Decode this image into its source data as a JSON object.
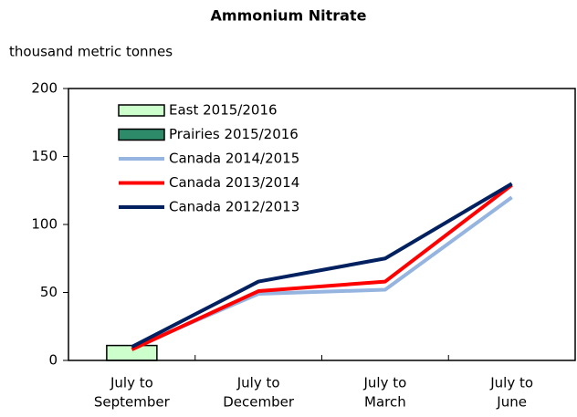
{
  "chart_data": {
    "type": "bar",
    "title": "Ammonium Nitrate",
    "y_label": "thousand metric tonnes",
    "categories": [
      [
        "July to",
        "September"
      ],
      [
        "July to",
        "December"
      ],
      [
        "July to",
        "March"
      ],
      [
        "July to",
        "June"
      ]
    ],
    "series": [
      {
        "name": "East 2015/2016",
        "type": "bar",
        "color": "#ccffcc",
        "values": [
          11,
          null,
          null,
          null
        ]
      },
      {
        "name": "Prairies 2015/2016",
        "type": "bar",
        "color": "#2e8b6a",
        "values": [
          null,
          null,
          null,
          null
        ]
      },
      {
        "name": "Canada 2014/2015",
        "type": "line",
        "color": "#95b4df",
        "values": [
          9,
          49,
          52,
          120
        ]
      },
      {
        "name": "Canada 2013/2014",
        "type": "line",
        "color": "#ff0000",
        "values": [
          8,
          51,
          58,
          129
        ]
      },
      {
        "name": "Canada 2012/2013",
        "type": "line",
        "color": "#002060",
        "values": [
          10,
          58,
          75,
          130
        ]
      }
    ],
    "ylim": [
      0,
      200
    ],
    "yticks": [
      0,
      50,
      100,
      150,
      200
    ],
    "legend": "upper left"
  }
}
